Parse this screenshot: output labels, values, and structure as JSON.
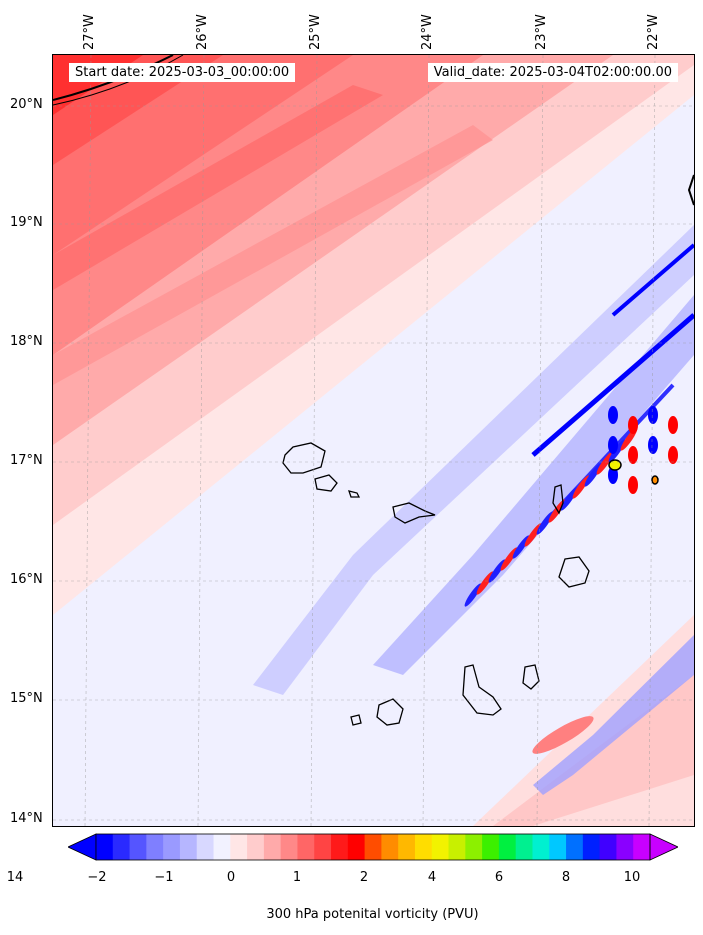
{
  "map": {
    "start_date_text": "Start date: 2025-03-03_00:00:00",
    "valid_date_text": "Valid_date: 2025-03-04T02:00:00.00",
    "longitude_labels": [
      "27°W",
      "26°W",
      "25°W",
      "24°W",
      "23°W",
      "22°W"
    ],
    "latitude_labels": [
      "20°N",
      "19°N",
      "18°N",
      "17°N",
      "16°N",
      "15°N",
      "14°N"
    ],
    "colorbar": {
      "label": "300 hPa potenital vorticity (PVU)",
      "tick_labels": [
        "−2",
        "−1",
        "0",
        "1",
        "2",
        "4",
        "6",
        "8",
        "10",
        "14"
      ],
      "colors": [
        "#0000ff",
        "#2a2aff",
        "#5555ff",
        "#7f7fff",
        "#9a9aff",
        "#b6b6ff",
        "#d8d8ff",
        "#f2f2ff",
        "#ffe6e6",
        "#ffcccc",
        "#ffaaaa",
        "#ff8888",
        "#ff6666",
        "#ff4444",
        "#ff1a1a",
        "#ff0000",
        "#ff4d00",
        "#ff8c00",
        "#ffb800",
        "#ffdd00",
        "#f2f200",
        "#c8f000",
        "#8cf000",
        "#3cf000",
        "#00f040",
        "#00f090",
        "#00f0d0",
        "#00c8ff",
        "#0070ff",
        "#0020ff",
        "#4000ff",
        "#8a00ff",
        "#c800ff"
      ],
      "extend_low_color": "#0000ff",
      "extend_high_color": "#c800ff"
    }
  }
}
